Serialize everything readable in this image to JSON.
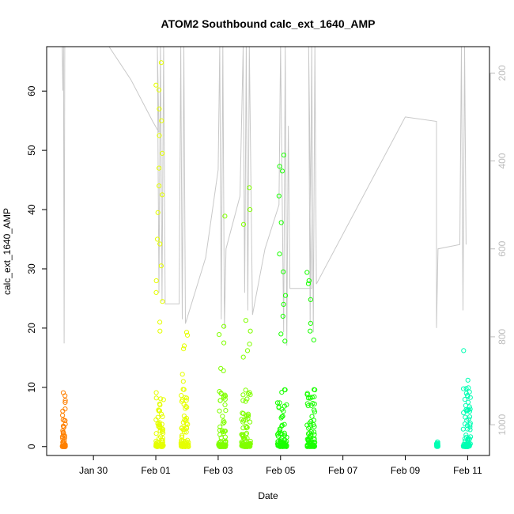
{
  "chart_data": {
    "type": "scatter",
    "title": "ATOM2 Southbound calc_ext_1640_AMP",
    "xlabel": "Date",
    "ylabel": "calc_ext_1640_AMP",
    "x_tick_labels": [
      "Jan 30",
      "Feb 01",
      "Feb 03",
      "Feb 05",
      "Feb 07",
      "Feb 09",
      "Feb 11"
    ],
    "x_tick_days": [
      30,
      32,
      34,
      36,
      38,
      40,
      42
    ],
    "xlim_days": [
      28.5,
      42.7
    ],
    "ylim": [
      -1.5,
      67.5
    ],
    "y_ticks": [
      0,
      10,
      20,
      30,
      40,
      50,
      60
    ],
    "y2_ticks": [
      200,
      400,
      600,
      800,
      1000
    ],
    "y2lim": [
      1070,
      140
    ],
    "grid": false,
    "legend": "none",
    "series": [
      {
        "color": "#ff8000",
        "clusters": [
          {
            "day_range": [
              29.0,
              29.1
            ],
            "max": 9.1,
            "outliers": [
              9.1,
              6.0,
              4.4,
              3.8
            ]
          }
        ]
      },
      {
        "color": "#e5ff00",
        "clusters": [
          {
            "day_range": [
              32.0,
              32.25
            ],
            "max": 65.0,
            "outliers": [
              64.8,
              61.0,
              60.2,
              57.0,
              55.0,
              52.5,
              49.5,
              47.0,
              44.0,
              42.5,
              39.5,
              35.0,
              34.2,
              30.5,
              28.0,
              26.0,
              24.5,
              21.0,
              19.5
            ]
          },
          {
            "day_range": [
              32.8,
              33.05
            ],
            "max": 19.5,
            "outliers": [
              19.3,
              18.8,
              17.0,
              16.5,
              12.2,
              11.0
            ]
          }
        ]
      },
      {
        "color": "#80ff00",
        "clusters": [
          {
            "day_range": [
              34.0,
              34.25
            ],
            "max": 39.0,
            "outliers": [
              38.9,
              20.3,
              18.9,
              17.5,
              13.2,
              12.8
            ]
          },
          {
            "day_range": [
              34.75,
              35.05
            ],
            "max": 43.7,
            "outliers": [
              43.7,
              40.0,
              37.5,
              21.3,
              19.5,
              17.3,
              16.2,
              15.1
            ]
          }
        ]
      },
      {
        "color": "#19ff00",
        "clusters": [
          {
            "day_range": [
              35.9,
              36.2
            ],
            "max": 49.2,
            "outliers": [
              49.2,
              47.3,
              46.5,
              42.3,
              37.8,
              32.5,
              29.5,
              25.5,
              24.0,
              22.0,
              19.0,
              17.8
            ]
          },
          {
            "day_range": [
              36.85,
              37.1
            ],
            "max": 29.4,
            "outliers": [
              29.4,
              28.0,
              27.5,
              24.8,
              20.8,
              19.5,
              18.0
            ]
          }
        ]
      },
      {
        "color": "#00ffb3",
        "clusters": [
          {
            "day_range": [
              41.0,
              41.05
            ],
            "max": 0.8,
            "outliers": [
              0.8,
              0.2
            ]
          },
          {
            "day_range": [
              41.85,
              42.1
            ],
            "max": 16.2,
            "outliers": [
              16.2,
              11.2,
              9.8,
              9.0
            ]
          }
        ]
      }
    ],
    "depth_trace": {
      "color": "#c8c8c8",
      "axis": "right",
      "points": [
        [
          29.0,
          140
        ],
        [
          29.02,
          240
        ],
        [
          29.04,
          140
        ],
        [
          29.06,
          815
        ],
        [
          29.08,
          140
        ],
        [
          30.5,
          140
        ],
        [
          31.2,
          215
        ],
        [
          31.9,
          310
        ],
        [
          32.1,
          335
        ],
        [
          32.05,
          140
        ],
        [
          32.1,
          700
        ],
        [
          32.15,
          140
        ],
        [
          32.2,
          720
        ],
        [
          32.25,
          140
        ],
        [
          32.3,
          725
        ],
        [
          32.75,
          725
        ],
        [
          32.8,
          140
        ],
        [
          32.85,
          760
        ],
        [
          32.9,
          140
        ],
        [
          32.95,
          770
        ],
        [
          33.6,
          620
        ],
        [
          34.0,
          420
        ],
        [
          34.05,
          140
        ],
        [
          34.1,
          760
        ],
        [
          34.15,
          140
        ],
        [
          34.2,
          780
        ],
        [
          34.25,
          600
        ],
        [
          34.7,
          480
        ],
        [
          34.8,
          140
        ],
        [
          34.85,
          700
        ],
        [
          34.9,
          140
        ],
        [
          34.95,
          740
        ],
        [
          35.0,
          140
        ],
        [
          35.1,
          750
        ],
        [
          35.5,
          600
        ],
        [
          35.95,
          500
        ],
        [
          36.0,
          140
        ],
        [
          36.1,
          790
        ],
        [
          36.15,
          140
        ],
        [
          36.2,
          820
        ],
        [
          36.25,
          320
        ],
        [
          36.3,
          690
        ],
        [
          37.0,
          690
        ],
        [
          36.9,
          140
        ],
        [
          36.95,
          770
        ],
        [
          37.0,
          140
        ],
        [
          37.05,
          790
        ],
        [
          37.1,
          140
        ],
        [
          37.15,
          680
        ],
        [
          40.0,
          300
        ],
        [
          41.0,
          310
        ],
        [
          41.0,
          780
        ],
        [
          41.05,
          600
        ],
        [
          41.75,
          590
        ],
        [
          41.8,
          140
        ],
        [
          41.85,
          740
        ],
        [
          41.9,
          140
        ],
        [
          41.95,
          590
        ]
      ]
    }
  }
}
